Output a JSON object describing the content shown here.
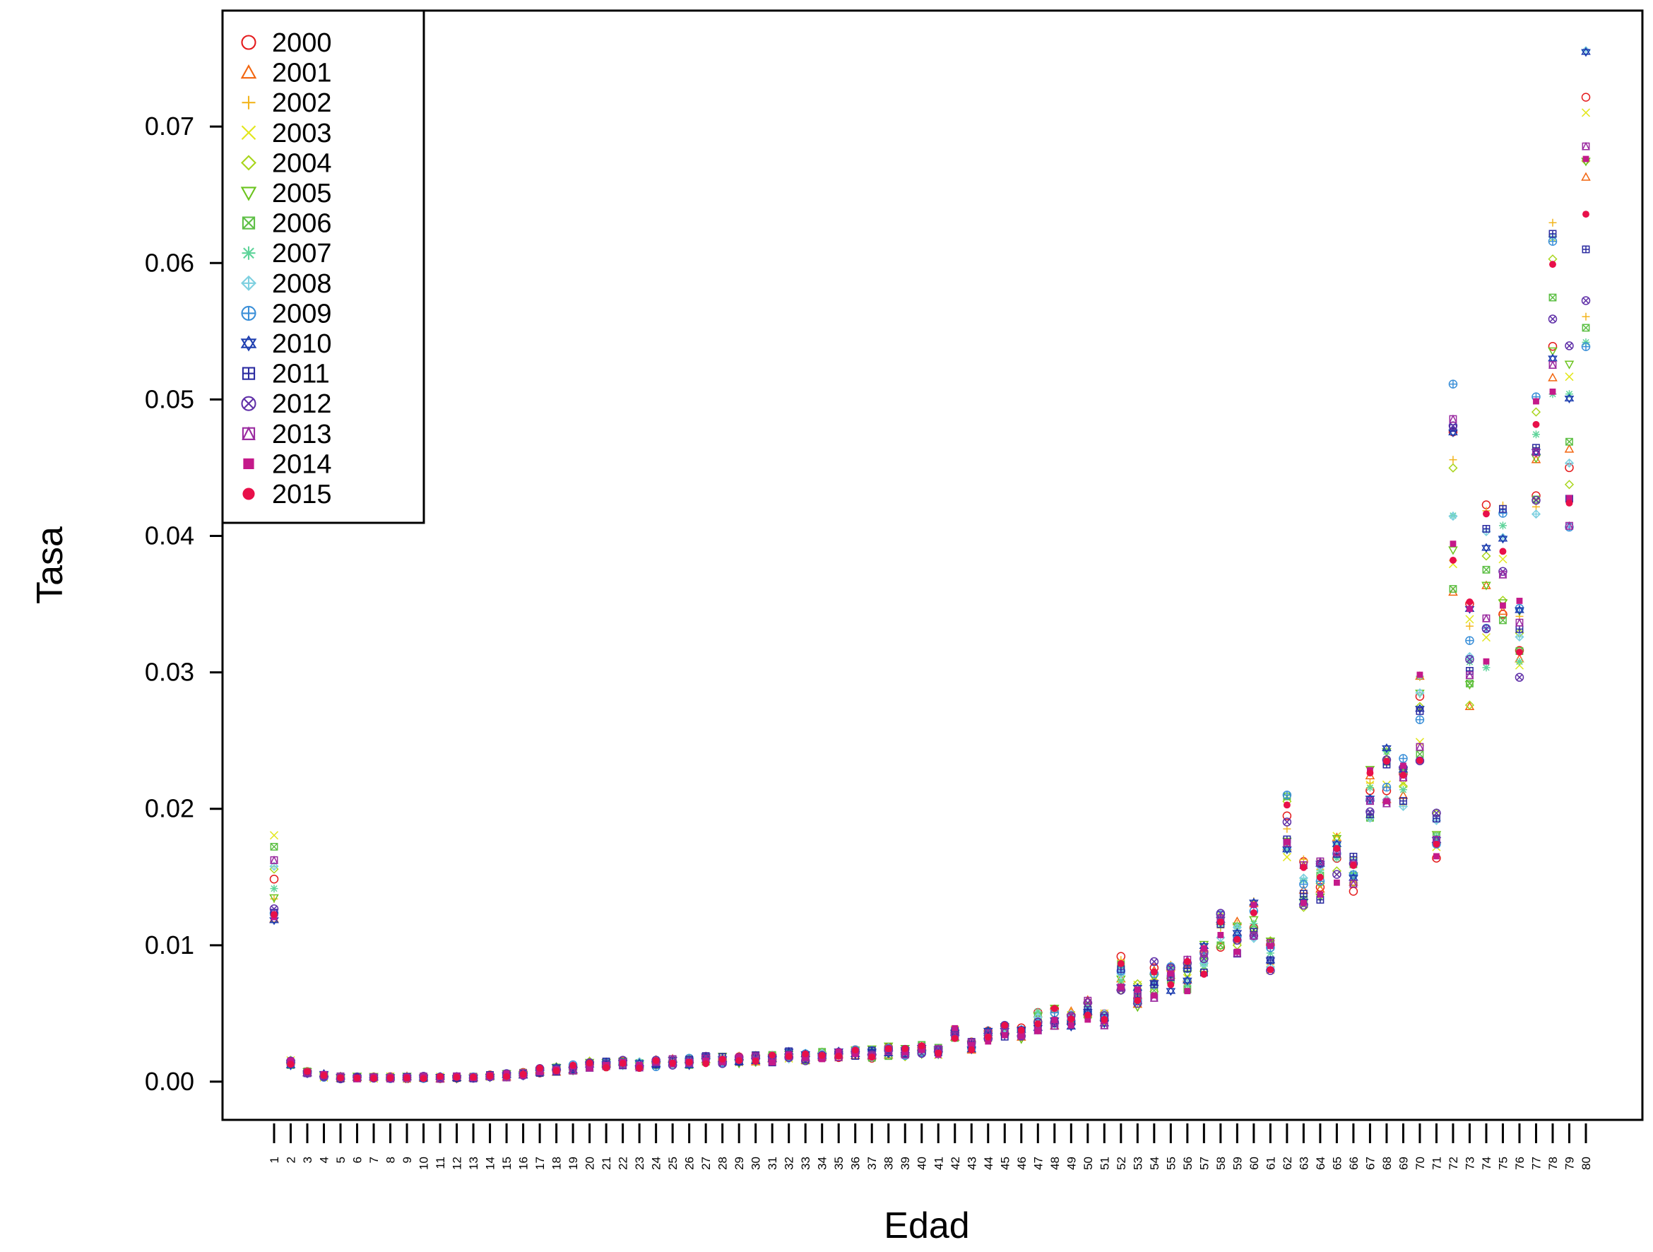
{
  "chart_data": {
    "type": "scatter",
    "title": "",
    "xlabel": "Edad",
    "ylabel": "Tasa",
    "x": [
      1,
      2,
      3,
      4,
      5,
      6,
      7,
      8,
      9,
      10,
      11,
      12,
      13,
      14,
      15,
      16,
      17,
      18,
      19,
      20,
      21,
      22,
      23,
      24,
      25,
      26,
      27,
      28,
      29,
      30,
      31,
      32,
      33,
      34,
      35,
      36,
      37,
      38,
      39,
      40,
      41,
      42,
      43,
      44,
      45,
      46,
      47,
      48,
      49,
      50,
      51,
      52,
      53,
      54,
      55,
      56,
      57,
      58,
      59,
      60,
      61,
      62,
      63,
      64,
      65,
      66,
      67,
      68,
      69,
      70,
      71,
      72,
      73,
      74,
      75,
      76,
      77,
      78,
      79,
      80
    ],
    "x_tick_labels": [
      "1",
      "2",
      "3",
      "4",
      "5",
      "6",
      "7",
      "8",
      "9",
      "10",
      "11",
      "12",
      "13",
      "14",
      "15",
      "16",
      "17",
      "18",
      "19",
      "20",
      "21",
      "22",
      "23",
      "24",
      "25",
      "26",
      "27",
      "28",
      "29",
      "30",
      "31",
      "32",
      "33",
      "34",
      "35",
      "36",
      "37",
      "38",
      "39",
      "40",
      "41",
      "42",
      "43",
      "44",
      "45",
      "46",
      "47",
      "48",
      "49",
      "50",
      "51",
      "52",
      "53",
      "54",
      "55",
      "56",
      "57",
      "58",
      "59",
      "60",
      "61",
      "62",
      "63",
      "64",
      "65",
      "66",
      "67",
      "68",
      "69",
      "70",
      "71",
      "72",
      "73",
      "74",
      "75",
      "76",
      "77",
      "78",
      "79",
      "80"
    ],
    "ylim": [
      -0.0028,
      0.0785
    ],
    "y_ticks": [
      0.0,
      0.01,
      0.02,
      0.03,
      0.04,
      0.05,
      0.06,
      0.07
    ],
    "y_tick_labels": [
      "0.00",
      "0.01",
      "0.02",
      "0.03",
      "0.04",
      "0.05",
      "0.06",
      "0.07"
    ],
    "grid": false,
    "legend_position": "top-left",
    "trend_min": [
      0.0118,
      0.0011,
      0.0006,
      0.0003,
      0.0002,
      0.0002,
      0.0002,
      0.0002,
      0.0002,
      0.0002,
      0.0002,
      0.0002,
      0.0002,
      0.0003,
      0.0003,
      0.0004,
      0.0006,
      0.0007,
      0.0008,
      0.001,
      0.001,
      0.0011,
      0.001,
      0.0011,
      0.0012,
      0.0012,
      0.0013,
      0.0013,
      0.0013,
      0.0014,
      0.0014,
      0.0016,
      0.0015,
      0.0016,
      0.0017,
      0.0017,
      0.0017,
      0.0018,
      0.0018,
      0.002,
      0.0019,
      0.0031,
      0.0023,
      0.0029,
      0.0032,
      0.0031,
      0.0036,
      0.004,
      0.0039,
      0.0044,
      0.004,
      0.0066,
      0.0054,
      0.0061,
      0.0065,
      0.0066,
      0.0077,
      0.0096,
      0.0093,
      0.0103,
      0.0081,
      0.0164,
      0.0127,
      0.0133,
      0.0145,
      0.0139,
      0.0193,
      0.0203,
      0.0199,
      0.0232,
      0.0163,
      0.0352,
      0.0265,
      0.03,
      0.0325,
      0.0292,
      0.0415,
      0.0492,
      0.0402,
      0.0518
    ],
    "trend_max": [
      0.0185,
      0.0016,
      0.0008,
      0.0006,
      0.0004,
      0.0004,
      0.0004,
      0.0004,
      0.0004,
      0.0004,
      0.0004,
      0.0004,
      0.0004,
      0.0005,
      0.0006,
      0.0007,
      0.001,
      0.0011,
      0.0013,
      0.0015,
      0.0015,
      0.0016,
      0.0015,
      0.0016,
      0.0017,
      0.0018,
      0.0019,
      0.0019,
      0.0019,
      0.002,
      0.002,
      0.0023,
      0.0021,
      0.0022,
      0.0023,
      0.0024,
      0.0024,
      0.0026,
      0.0025,
      0.0028,
      0.0025,
      0.004,
      0.003,
      0.0038,
      0.0042,
      0.004,
      0.0052,
      0.0054,
      0.0053,
      0.006,
      0.005,
      0.0092,
      0.0072,
      0.0088,
      0.009,
      0.009,
      0.0103,
      0.0125,
      0.0118,
      0.0133,
      0.0104,
      0.0212,
      0.0163,
      0.0163,
      0.0182,
      0.0165,
      0.023,
      0.0247,
      0.0237,
      0.0301,
      0.0199,
      0.0512,
      0.0353,
      0.0428,
      0.0437,
      0.0356,
      0.052,
      0.0635,
      0.0553,
      0.0759
    ],
    "series": [
      {
        "name": "2000",
        "color": "#E41A1C",
        "marker": "circle-open"
      },
      {
        "name": "2001",
        "color": "#F2650F",
        "marker": "triangle-open"
      },
      {
        "name": "2002",
        "color": "#F2B51F",
        "marker": "plus"
      },
      {
        "name": "2003",
        "color": "#E2E61B",
        "marker": "cross"
      },
      {
        "name": "2004",
        "color": "#A8D51B",
        "marker": "diamond-open"
      },
      {
        "name": "2005",
        "color": "#6BC41E",
        "marker": "triangle-down-open"
      },
      {
        "name": "2006",
        "color": "#5DBF45",
        "marker": "square-x"
      },
      {
        "name": "2007",
        "color": "#5ED49A",
        "marker": "asterisk"
      },
      {
        "name": "2008",
        "color": "#7DD0E0",
        "marker": "diamond-plus"
      },
      {
        "name": "2009",
        "color": "#3A8FD8",
        "marker": "circle-plus"
      },
      {
        "name": "2010",
        "color": "#1F3FB0",
        "marker": "star-of-david"
      },
      {
        "name": "2011",
        "color": "#2A2AA0",
        "marker": "square-plus"
      },
      {
        "name": "2012",
        "color": "#6030A8",
        "marker": "circle-x"
      },
      {
        "name": "2013",
        "color": "#9A2AA0",
        "marker": "square-triangle"
      },
      {
        "name": "2014",
        "color": "#C41A8A",
        "marker": "square-filled"
      },
      {
        "name": "2015",
        "color": "#E8104A",
        "marker": "circle-filled"
      }
    ]
  }
}
